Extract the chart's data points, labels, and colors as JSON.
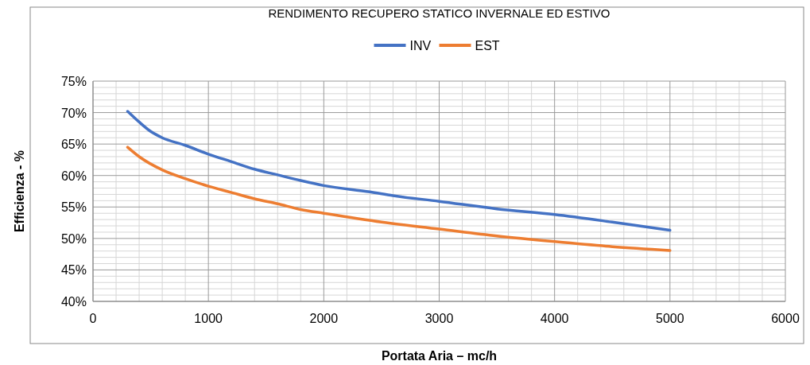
{
  "chart_data": {
    "type": "line",
    "title": "RENDIMENTO RECUPERO STATICO INVERNALE ED ESTIVO",
    "xlabel": "Portata Aria – mc/h",
    "ylabel": "Efficienza - %",
    "xlim": [
      0,
      6000
    ],
    "xticks": [
      0,
      1000,
      2000,
      3000,
      4000,
      5000,
      6000
    ],
    "ylim": [
      40,
      75
    ],
    "yticks": [
      {
        "value": 40,
        "label": "40%"
      },
      {
        "value": 45,
        "label": "45%"
      },
      {
        "value": 50,
        "label": "50%"
      },
      {
        "value": 55,
        "label": "55%"
      },
      {
        "value": 60,
        "label": "60%"
      },
      {
        "value": 65,
        "label": "65%"
      },
      {
        "value": 70,
        "label": "70%"
      },
      {
        "value": 75,
        "label": "75%"
      }
    ],
    "grid": true,
    "legend": "top",
    "marker": "none",
    "line_style": "solid",
    "series": [
      {
        "name": "INV",
        "color": "#4472c4",
        "x": [
          300,
          400,
          500,
          600,
          800,
          1000,
          1200,
          1400,
          1600,
          1800,
          2000,
          2400,
          2600,
          3000,
          3500,
          4000,
          4500,
          5000
        ],
        "values": [
          70.2,
          68.5,
          67,
          66,
          64.8,
          63.4,
          62.2,
          61,
          60.1,
          59.2,
          58.4,
          57.4,
          56.8,
          55.9,
          54.7,
          53.8,
          52.6,
          51.3
        ]
      },
      {
        "name": "EST",
        "color": "#ed7d31",
        "x": [
          300,
          400,
          600,
          800,
          1000,
          1200,
          1400,
          1600,
          1800,
          2000,
          2500,
          3000,
          3500,
          4000,
          4500,
          5000
        ],
        "values": [
          64.5,
          63,
          60.9,
          59.5,
          58.3,
          57.3,
          56.3,
          55.5,
          54.6,
          54,
          52.6,
          51.5,
          50.4,
          49.5,
          48.7,
          48.1
        ]
      }
    ]
  }
}
